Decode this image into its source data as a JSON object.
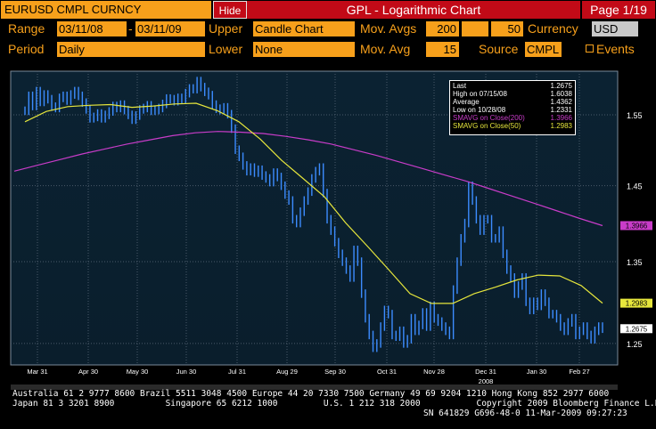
{
  "header": {
    "security": "EURUSD CMPL CURNCY",
    "hide_label": "Hide",
    "title": "GPL - Logarithmic Chart",
    "page": "Page 1/19"
  },
  "controls": {
    "range_label": "Range",
    "range_start": "03/11/08",
    "range_sep": "-",
    "range_end": "03/11/09",
    "upper_label": "Upper",
    "upper_value": "Candle Chart",
    "mov_avgs_label": "Mov. Avgs",
    "mov_avg_1": "200",
    "mov_avg_2": "50",
    "currency_label": "Currency",
    "currency_value": "USD",
    "period_label": "Period",
    "period_value": "Daily",
    "lower_label": "Lower",
    "lower_value": "None",
    "mov_avg_label_2": "Mov. Avg",
    "mov_avg_3": "15",
    "source_label": "Source",
    "source_value": "CMPL",
    "events_label": "Events"
  },
  "legend": {
    "rows": [
      {
        "label": "Last",
        "value": "1.2675",
        "color": "#ffffff"
      },
      {
        "label": "High on 07/15/08",
        "value": "1.6038",
        "color": "#ffffff"
      },
      {
        "label": "Average",
        "value": "1.4362",
        "color": "#ffffff"
      },
      {
        "label": "Low on 10/28/08",
        "value": "1.2331",
        "color": "#ffffff"
      },
      {
        "label": "SMAVG on Close(200)",
        "value": "1.3966",
        "color": "#c83cc8"
      },
      {
        "label": "SMAVG on Close(50)",
        "value": "1.2983",
        "color": "#e6e63c"
      }
    ]
  },
  "chart_data": {
    "type": "line",
    "scale": "log",
    "y_ticks": [
      "1.55",
      "1.45",
      "1.35",
      "1.25"
    ],
    "y_tick_values": [
      1.55,
      1.45,
      1.35,
      1.25
    ],
    "ylim": [
      1.225,
      1.615
    ],
    "x_tick_labels": [
      "Mar 31",
      "Apr 30",
      "May 30",
      "Jun 30",
      "Jul 31",
      "Aug 29",
      "Sep 30",
      "Oct 31",
      "Nov 28",
      "Dec 31",
      "Jan 30",
      "Feb 27"
    ],
    "x_year_label": "2008",
    "last_labels": [
      {
        "text": "1.3966",
        "value": 1.3966,
        "color": "#c83cc8"
      },
      {
        "text": "1.2983",
        "value": 1.2983,
        "color": "#e6e63c"
      },
      {
        "text": "1.2675",
        "value": 1.2675,
        "color": "#ffffff"
      }
    ],
    "series": [
      {
        "name": "EURUSD",
        "color": "#3c8cff",
        "values": [
          1.556,
          1.578,
          1.563,
          1.585,
          1.569,
          1.58,
          1.573,
          1.562,
          1.56,
          1.575,
          1.578,
          1.571,
          1.58,
          1.585,
          1.578,
          1.568,
          1.558,
          1.545,
          1.547,
          1.552,
          1.545,
          1.55,
          1.555,
          1.563,
          1.56,
          1.565,
          1.557,
          1.55,
          1.543,
          1.549,
          1.558,
          1.56,
          1.564,
          1.556,
          1.557,
          1.56,
          1.566,
          1.574,
          1.573,
          1.57,
          1.575,
          1.573,
          1.582,
          1.589,
          1.588,
          1.6,
          1.591,
          1.584,
          1.579,
          1.565,
          1.559,
          1.557,
          1.561,
          1.551,
          1.53,
          1.5,
          1.49,
          1.478,
          1.47,
          1.475,
          1.468,
          1.472,
          1.464,
          1.46,
          1.455,
          1.468,
          1.462,
          1.45,
          1.438,
          1.43,
          1.405,
          1.4,
          1.415,
          1.43,
          1.442,
          1.46,
          1.47,
          1.475,
          1.44,
          1.405,
          1.39,
          1.375,
          1.36,
          1.35,
          1.34,
          1.33,
          1.365,
          1.35,
          1.31,
          1.28,
          1.26,
          1.245,
          1.25,
          1.27,
          1.29,
          1.285,
          1.26,
          1.258,
          1.265,
          1.25,
          1.255,
          1.28,
          1.265,
          1.272,
          1.287,
          1.27,
          1.295,
          1.28,
          1.276,
          1.27,
          1.265,
          1.26,
          1.315,
          1.35,
          1.38,
          1.4,
          1.45,
          1.43,
          1.405,
          1.39,
          1.405,
          1.405,
          1.38,
          1.38,
          1.39,
          1.36,
          1.34,
          1.33,
          1.31,
          1.32,
          1.33,
          1.3,
          1.29,
          1.3,
          1.295,
          1.31,
          1.3,
          1.285,
          1.285,
          1.28,
          1.27,
          1.265,
          1.275,
          1.28,
          1.26,
          1.265,
          1.27,
          1.26,
          1.255,
          1.265,
          1.27,
          1.2675
        ]
      },
      {
        "name": "SMAVG on Close(200)",
        "color": "#c83cc8",
        "values": [
          1.47,
          1.478,
          1.486,
          1.494,
          1.501,
          1.508,
          1.514,
          1.52,
          1.524,
          1.526,
          1.525,
          1.523,
          1.519,
          1.514,
          1.508,
          1.5,
          1.492,
          1.483,
          1.474,
          1.465,
          1.456,
          1.446,
          1.436,
          1.426,
          1.416,
          1.406,
          1.3966
        ]
      },
      {
        "name": "SMAVG on Close(50)",
        "color": "#e6e63c",
        "values": [
          1.54,
          1.555,
          1.562,
          1.564,
          1.565,
          1.561,
          1.563,
          1.566,
          1.567,
          1.556,
          1.54,
          1.515,
          1.485,
          1.46,
          1.435,
          1.4,
          1.37,
          1.34,
          1.31,
          1.298,
          1.298,
          1.31,
          1.318,
          1.327,
          1.333,
          1.332,
          1.32,
          1.2983
        ]
      }
    ]
  },
  "footer": {
    "line1": "Australia 61 2 9777 8600 Brazil 5511 3048 4500 Europe 44 20 7330 7500 Germany 49 69 9204 1210 Hong Kong 852 2977 6000",
    "line2": "Japan 81 3 3201 8900          Singapore 65 6212 1000         U.S. 1 212 318 2000           Copyright 2009 Bloomberg Finance L.P.",
    "line3": "SN 641829 G696-48-0 11-Mar-2009 09:27:23"
  }
}
